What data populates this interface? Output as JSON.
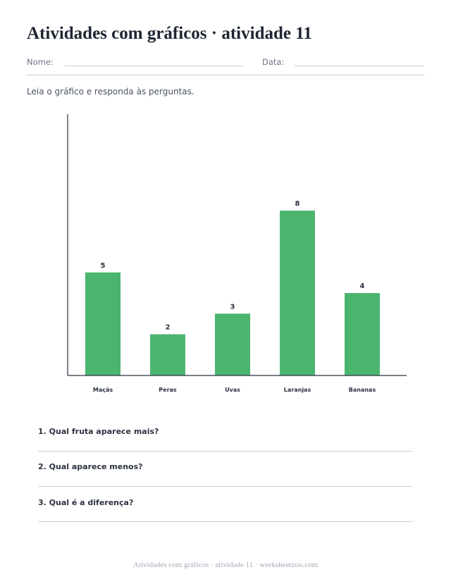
{
  "title": "Atividades com gráficos · atividade 11",
  "fields": {
    "name_label": "Nome:",
    "date_label": "Data:"
  },
  "instruction": "Leia o gráfico e responda às perguntas.",
  "colors": {
    "bar": "#4bb56f",
    "axis": "#2b3240",
    "rule": "#c9ced8"
  },
  "chart_data": {
    "type": "bar",
    "categories": [
      "Maçãs",
      "Peras",
      "Uvas",
      "Laranjas",
      "Bananas"
    ],
    "values": [
      5,
      2,
      3,
      8,
      4
    ],
    "title": "",
    "xlabel": "",
    "ylabel": "",
    "ylim": [
      0,
      10
    ],
    "grid": false,
    "data_labels": true
  },
  "questions": [
    {
      "text": "1. Qual fruta aparece mais?"
    },
    {
      "text": "2. Qual aparece menos?"
    },
    {
      "text": "3. Qual é a diferença?"
    }
  ],
  "footer": "Atividades com gráficos · atividade 11 · worksheetzoo.com"
}
